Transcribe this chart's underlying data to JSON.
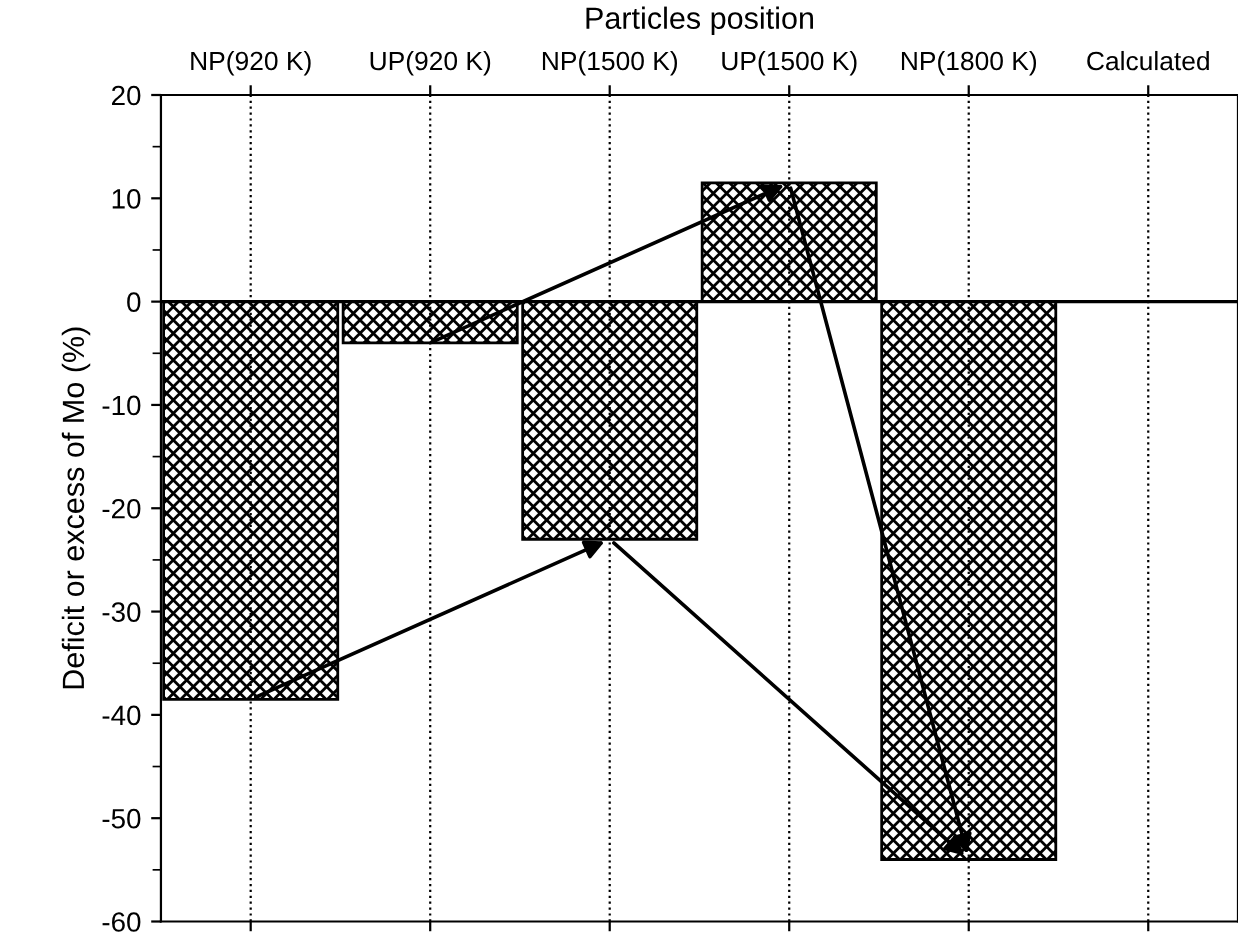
{
  "chart_data": {
    "type": "bar",
    "x2label": "Particles position",
    "ylabel": "Deficit or excess of Mo (%)",
    "categories": [
      "NP(920 K)",
      "UP(920 K)",
      "NP(1500 K)",
      "UP(1500 K)",
      "NP(1800 K)",
      "Calculated"
    ],
    "values": [
      -38.5,
      -4,
      -23,
      11.5,
      -54,
      0
    ],
    "color": "#000000",
    "ylim": [
      -60,
      20
    ],
    "yticks": [
      -60,
      -50,
      -40,
      -30,
      -20,
      -10,
      0,
      10,
      20
    ],
    "grid": "x",
    "ref_lines": [
      {
        "axis": "y",
        "value": 0,
        "color": "#000000"
      }
    ]
  }
}
